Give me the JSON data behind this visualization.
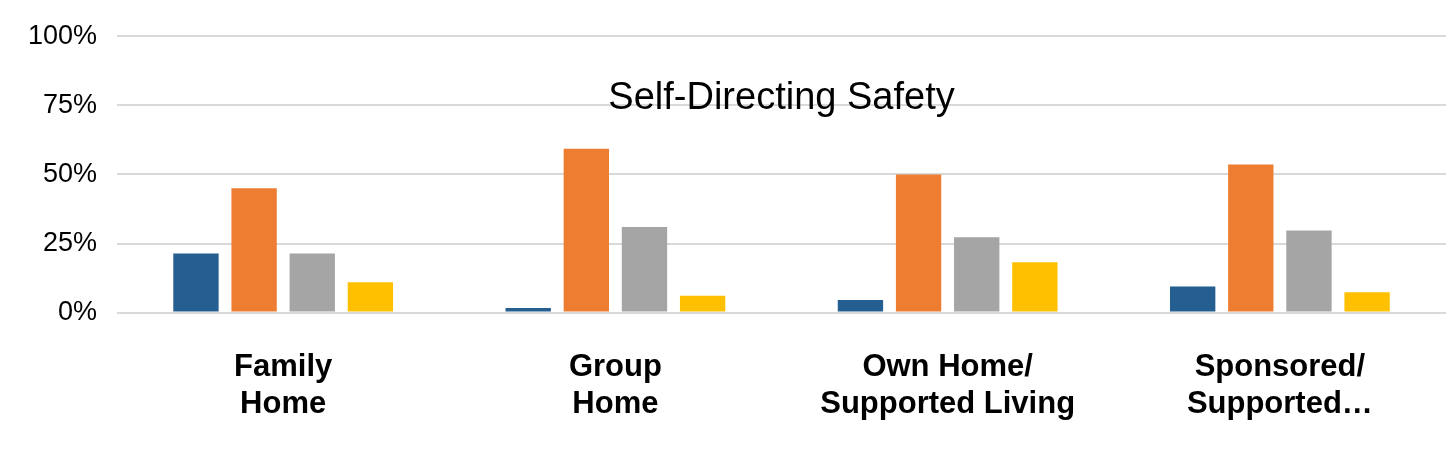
{
  "chart_data": {
    "type": "bar",
    "title": "Self-Directing Safety",
    "categories": [
      "Family Home",
      "Group Home",
      "Own Home/ Supported Living",
      "Sponsored/ Supported…"
    ],
    "series": [
      {
        "color": "#255e91",
        "values": [
          21.4,
          1.7,
          4.6,
          9.4
        ]
      },
      {
        "color": "#ed7d31",
        "values": [
          45,
          59.3,
          50,
          53.6
        ]
      },
      {
        "color": "#a5a5a5",
        "values": [
          21.4,
          31,
          27.3,
          29.7
        ]
      },
      {
        "color": "#ffc000",
        "values": [
          11,
          6.1,
          18.2,
          7.4
        ]
      }
    ],
    "ylim": [
      0,
      100
    ],
    "yticks": [
      {
        "value": 0,
        "label": "0%"
      },
      {
        "value": 25,
        "label": "25%"
      },
      {
        "value": 50,
        "label": "50%"
      },
      {
        "value": 75,
        "label": "75%"
      },
      {
        "value": 100,
        "label": "100%"
      }
    ],
    "grid": "y",
    "legend": false
  }
}
